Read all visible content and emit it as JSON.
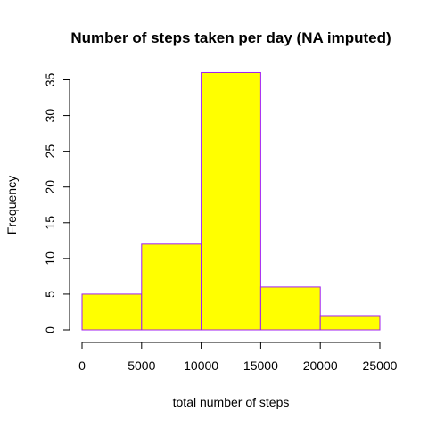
{
  "chart_data": {
    "type": "bar",
    "title": "Number of steps taken per day (NA imputed)",
    "xlabel": "total number of steps",
    "ylabel": "Frequency",
    "bins": [
      {
        "from": 0,
        "to": 5000,
        "count": 5
      },
      {
        "from": 5000,
        "to": 10000,
        "count": 12
      },
      {
        "from": 10000,
        "to": 15000,
        "count": 36
      },
      {
        "from": 15000,
        "to": 20000,
        "count": 6
      },
      {
        "from": 20000,
        "to": 25000,
        "count": 2
      }
    ],
    "xlim": [
      0,
      25000
    ],
    "ylim": [
      0,
      35
    ],
    "x_ticks": [
      0,
      5000,
      10000,
      15000,
      20000,
      25000
    ],
    "y_ticks": [
      0,
      5,
      10,
      15,
      20,
      25,
      30,
      35
    ],
    "bar_fill": "#ffff00",
    "bar_border": "#a020f0",
    "grid": false
  }
}
